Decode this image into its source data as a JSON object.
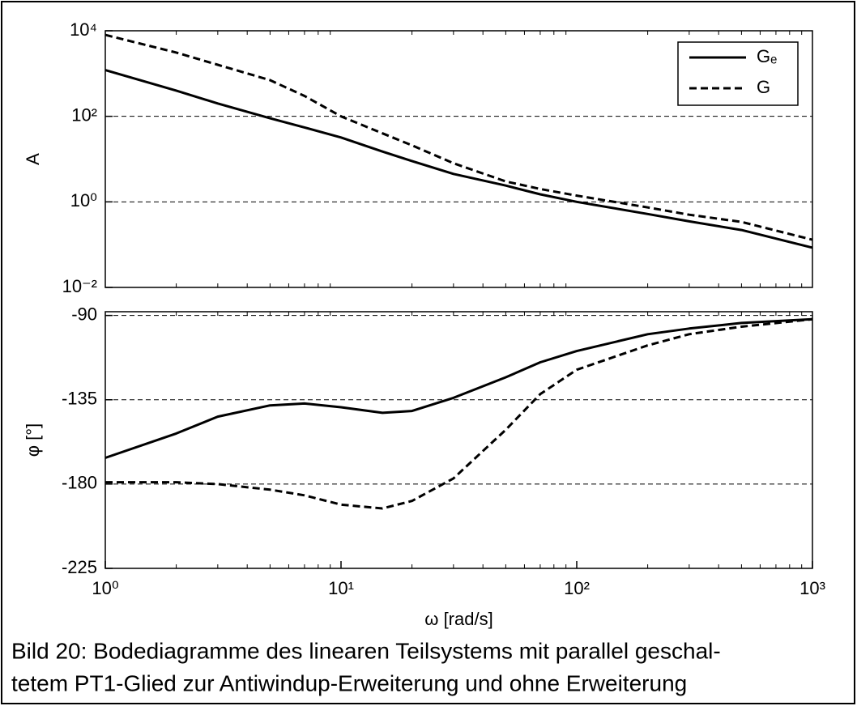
{
  "chart_data": [
    {
      "type": "line",
      "ylabel": "A",
      "xscale": "log",
      "yscale": "log",
      "grid": "y",
      "legend": "upper right",
      "xlim": [
        1,
        1000
      ],
      "ylim": [
        0.01,
        10000
      ],
      "yticks": [
        {
          "value": 10000,
          "label": "10⁴"
        },
        {
          "value": 100,
          "label": "10²"
        },
        {
          "value": 1,
          "label": "10⁰"
        },
        {
          "value": 0.01,
          "label": "10⁻²"
        }
      ],
      "x": [
        1,
        2,
        3,
        5,
        7,
        10,
        15,
        20,
        30,
        50,
        70,
        100,
        200,
        300,
        500,
        1000
      ],
      "series": [
        {
          "name": "Gₑ",
          "color": "#000000",
          "linestyle": "solid",
          "values": [
            1200,
            400,
            200,
            90,
            55,
            32,
            15,
            9,
            4.5,
            2.4,
            1.5,
            1,
            0.52,
            0.35,
            0.22,
            0.085
          ]
        },
        {
          "name": "G",
          "color": "#000000",
          "linestyle": "dashed",
          "values": [
            8000,
            3100,
            1600,
            700,
            300,
            100,
            40,
            21,
            8,
            3,
            2,
            1.4,
            0.74,
            0.5,
            0.34,
            0.13
          ]
        }
      ]
    },
    {
      "type": "line",
      "ylabel": "φ [°]",
      "xlabel": "ω [rad/s]",
      "xscale": "log",
      "yscale": "linear",
      "grid": "y",
      "xlim": [
        1,
        1000
      ],
      "ylim": [
        -225,
        -88
      ],
      "xticks": [
        {
          "value": 1,
          "label": "10⁰"
        },
        {
          "value": 10,
          "label": "10¹"
        },
        {
          "value": 100,
          "label": "10²"
        },
        {
          "value": 1000,
          "label": "10³"
        }
      ],
      "yticks": [
        -90,
        -135,
        -180,
        -225
      ],
      "x": [
        1,
        2,
        3,
        5,
        7,
        10,
        15,
        20,
        30,
        50,
        70,
        100,
        200,
        300,
        500,
        1000
      ],
      "series": [
        {
          "name": "Gₑ",
          "color": "#000000",
          "linestyle": "solid",
          "values": [
            -166,
            -153,
            -144,
            -138,
            -137,
            -139,
            -142,
            -141,
            -134,
            -123,
            -115,
            -109,
            -100,
            -97,
            -94,
            -92
          ]
        },
        {
          "name": "G",
          "color": "#000000",
          "linestyle": "dashed",
          "values": [
            -179,
            -179,
            -180,
            -183,
            -186,
            -191,
            -193,
            -189,
            -177,
            -151,
            -132,
            -119,
            -106,
            -100,
            -96,
            -92
          ]
        }
      ]
    }
  ],
  "caption": [
    "Bild 20: Bodediagramme des linearen Teilsystems mit parallel geschal-",
    "tetem PT1-Glied zur Antiwindup-Erweiterung und ohne Erweiterung"
  ]
}
